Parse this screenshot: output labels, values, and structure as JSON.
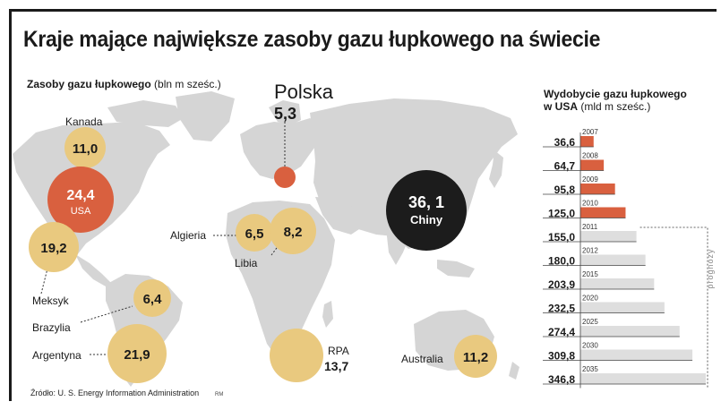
{
  "title": "Kraje mające największe zasoby gazu łupkowego na świecie",
  "reserves": {
    "heading_bold": "Zasoby gazu łupkowego",
    "heading_unit": "(bln m sześc.)",
    "countries": [
      {
        "name": "Kanada",
        "value": "11,0",
        "highlight": "none"
      },
      {
        "name": "USA",
        "value": "24,4",
        "highlight": "red"
      },
      {
        "name": "Meksyk",
        "value": "19,2",
        "highlight": "none"
      },
      {
        "name": "Brazylia",
        "value": "6,4",
        "highlight": "none"
      },
      {
        "name": "Argentyna",
        "value": "21,9",
        "highlight": "none"
      },
      {
        "name": "Algieria",
        "value": "6,5",
        "highlight": "none"
      },
      {
        "name": "Libia",
        "value": "8,2",
        "highlight": "none"
      },
      {
        "name": "Polska",
        "value": "5,3",
        "highlight": "red"
      },
      {
        "name": "Chiny",
        "value": "36, 1",
        "highlight": "black"
      },
      {
        "name": "RPA",
        "value": "13,7",
        "highlight": "none"
      },
      {
        "name": "Australia",
        "value": "11,2",
        "highlight": "none"
      }
    ]
  },
  "chart_data": {
    "type": "bar",
    "title": "Wydobycie gazu łupkowego w USA",
    "title_line1": "Wydobycie gazu łupkowego",
    "title_line2_bold": "w USA",
    "unit": "(mld m sześc.)",
    "categories": [
      "2007",
      "2008",
      "2009",
      "2010",
      "2011",
      "2012",
      "2015",
      "2020",
      "2025",
      "2030",
      "2035"
    ],
    "values": [
      36.6,
      64.7,
      95.8,
      125.0,
      155.0,
      180.0,
      203.9,
      232.5,
      274.4,
      309.8,
      346.8
    ],
    "value_labels": [
      "36,6",
      "64,7",
      "95,8",
      "125,0",
      "155,0",
      "180,0",
      "203,9",
      "232,5",
      "274,4",
      "309,8",
      "346,8"
    ],
    "series_type": [
      "actual",
      "actual",
      "actual",
      "actual",
      "forecast",
      "forecast",
      "forecast",
      "forecast",
      "forecast",
      "forecast",
      "forecast"
    ],
    "forecast_label": "prognozy",
    "xlim": [
      0,
      346.8
    ]
  },
  "source": "Źródło: U. S. Energy Information Administration",
  "credit": "RM",
  "colors": {
    "bubble": "#e9c97f",
    "red": "#d9603f",
    "black": "#1c1c1c",
    "map": "#d5d5d5",
    "forecast_bar": "#dedede",
    "actual_bar": "#d9603f"
  }
}
